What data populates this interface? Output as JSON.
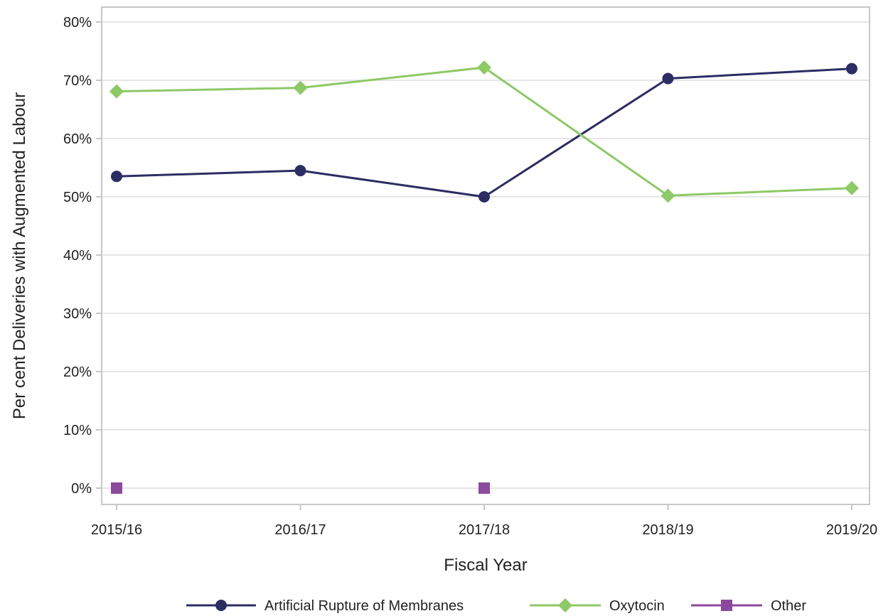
{
  "chart_data": {
    "type": "line",
    "title": "",
    "xlabel": "Fiscal Year",
    "ylabel": "Per cent Deliveries with Augmented Labour",
    "categories": [
      "2015/16",
      "2016/17",
      "2017/18",
      "2018/19",
      "2019/20"
    ],
    "ylim": [
      0,
      80
    ],
    "yticks": [
      0,
      10,
      20,
      30,
      40,
      50,
      60,
      70,
      80
    ],
    "ytick_labels": [
      "0%",
      "10%",
      "20%",
      "30%",
      "40%",
      "50%",
      "60%",
      "70%",
      "80%"
    ],
    "grid": "horizontal",
    "legend_position": "bottom",
    "series": [
      {
        "name": "Artificial Rupture of Membranes",
        "color": "#2c2d63",
        "marker": "circle",
        "values": [
          53.5,
          54.5,
          50.0,
          70.3,
          72.0
        ]
      },
      {
        "name": "Oxytocin",
        "color": "#8dc965",
        "marker": "diamond",
        "values": [
          68.1,
          68.7,
          72.2,
          50.2,
          51.5
        ]
      },
      {
        "name": "Other",
        "color": "#8b4a9c",
        "marker": "square",
        "values": [
          0,
          null,
          0,
          null,
          null
        ]
      }
    ]
  }
}
